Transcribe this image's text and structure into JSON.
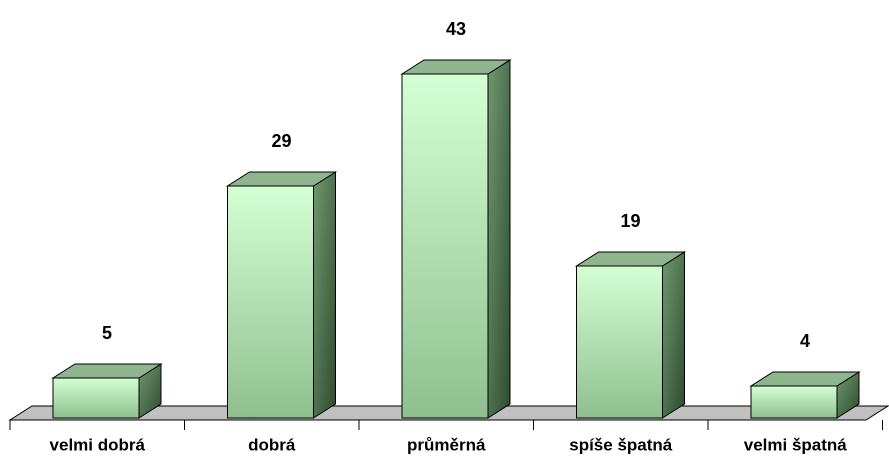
{
  "chart_data": {
    "type": "bar",
    "categories": [
      "velmi dobrá",
      "dobrá",
      "průměrná",
      "spíše špatná",
      "velmi špatná"
    ],
    "values": [
      5,
      29,
      43,
      19,
      4
    ],
    "color": "#c8f5c8"
  }
}
